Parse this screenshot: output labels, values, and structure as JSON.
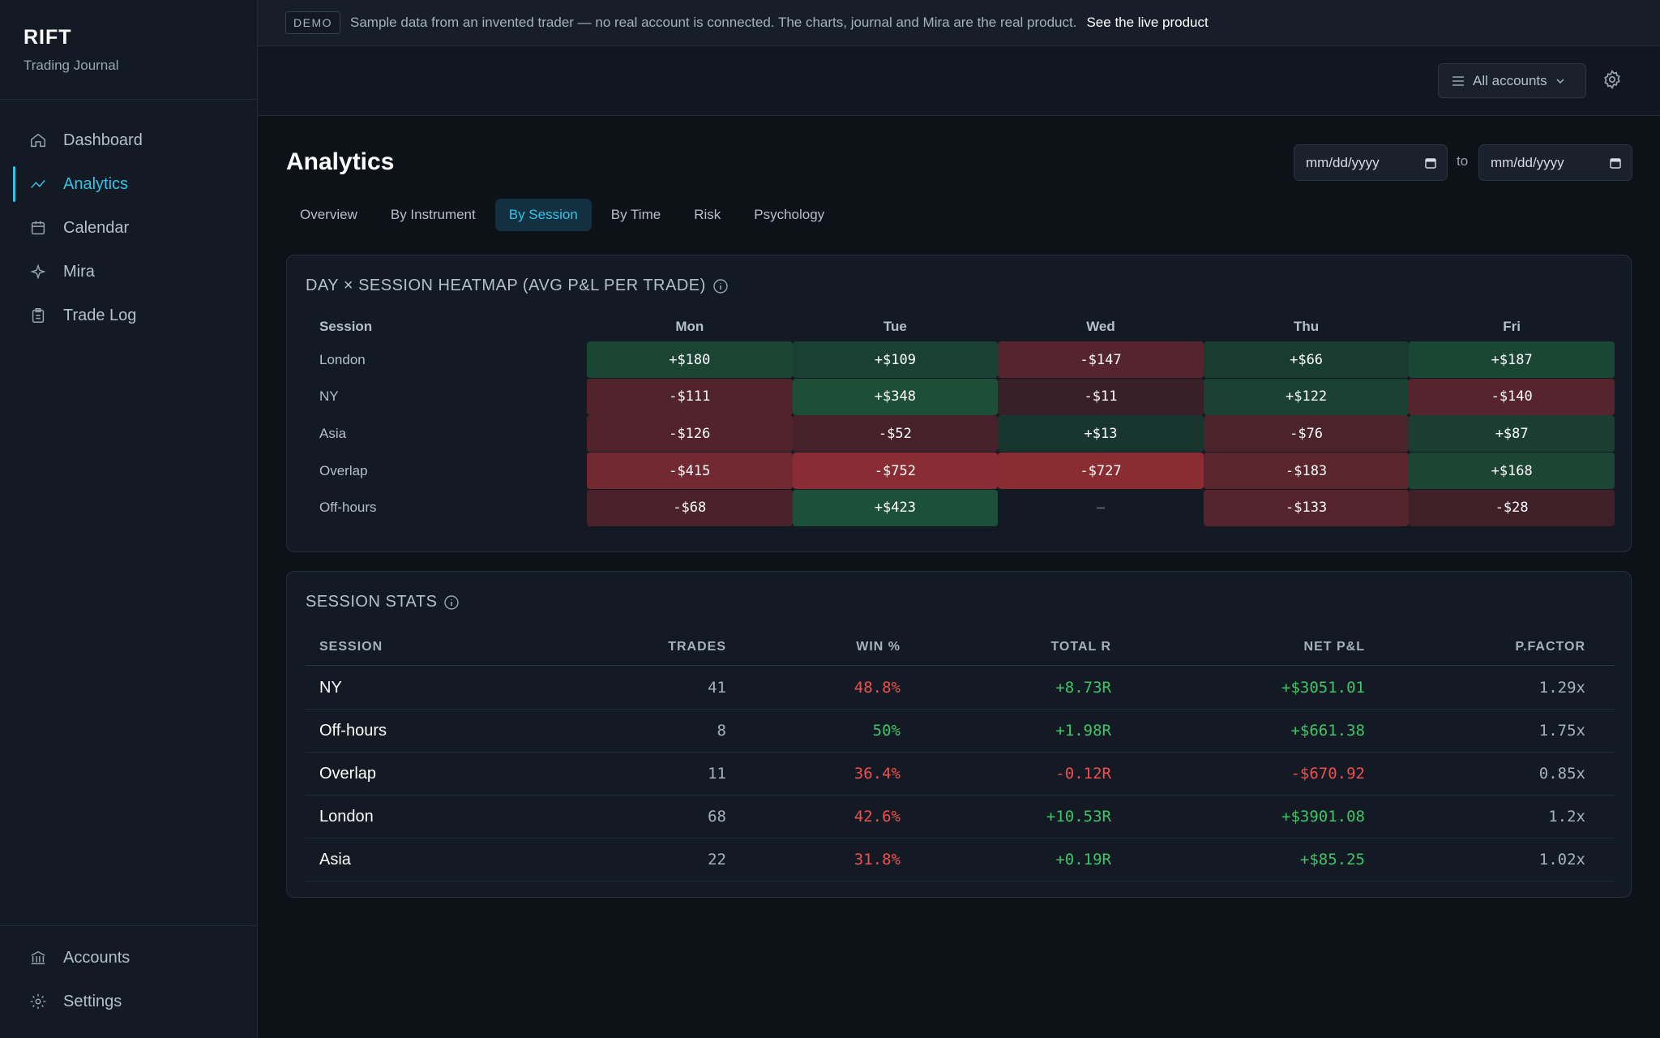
{
  "brand": {
    "name": "RIFT",
    "subtitle": "Trading Journal"
  },
  "nav": {
    "items": [
      {
        "label": "Dashboard",
        "icon": "home-icon"
      },
      {
        "label": "Analytics",
        "icon": "analytics-icon",
        "active": true
      },
      {
        "label": "Calendar",
        "icon": "calendar-icon"
      },
      {
        "label": "Mira",
        "icon": "sparkle-icon"
      },
      {
        "label": "Trade Log",
        "icon": "clipboard-icon"
      }
    ],
    "bottom": [
      {
        "label": "Accounts",
        "icon": "bank-icon"
      },
      {
        "label": "Settings",
        "icon": "gear-icon"
      }
    ]
  },
  "banner": {
    "badge": "DEMO",
    "text": "Sample data from an invented trader — no real account is connected. The charts, journal and Mira are the real product.",
    "link": "See the live product"
  },
  "topbar": {
    "account_select": "All accounts"
  },
  "page": {
    "title": "Analytics",
    "date_from_placeholder": "mm/dd/yyyy",
    "date_to_label": "to",
    "date_to_placeholder": "mm/dd/yyyy"
  },
  "tabs": [
    {
      "label": "Overview"
    },
    {
      "label": "By Instrument"
    },
    {
      "label": "By Session",
      "active": true
    },
    {
      "label": "By Time"
    },
    {
      "label": "Risk"
    },
    {
      "label": "Psychology"
    }
  ],
  "heatmap": {
    "title": "DAY × SESSION HEATMAP (AVG P&L PER TRADE)",
    "session_header": "Session",
    "days": [
      "Mon",
      "Tue",
      "Wed",
      "Thu",
      "Fri"
    ],
    "colors": {
      "positive": "#1c6b3f",
      "negative": "#8a2a30"
    },
    "rows": [
      {
        "session": "London",
        "values": [
          "+$180",
          "+$109",
          "-$147",
          "+$66",
          "+$187"
        ],
        "nums": [
          180,
          109,
          -147,
          66,
          187
        ]
      },
      {
        "session": "NY",
        "values": [
          "-$111",
          "+$348",
          "-$11",
          "+$122",
          "-$140"
        ],
        "nums": [
          -111,
          348,
          -11,
          122,
          -140
        ]
      },
      {
        "session": "Asia",
        "values": [
          "-$126",
          "-$52",
          "+$13",
          "-$76",
          "+$87"
        ],
        "nums": [
          -126,
          -52,
          13,
          -76,
          87
        ]
      },
      {
        "session": "Overlap",
        "values": [
          "-$415",
          "-$752",
          "-$727",
          "-$183",
          "+$168"
        ],
        "nums": [
          -415,
          -752,
          -727,
          -183,
          168
        ]
      },
      {
        "session": "Off-hours",
        "values": [
          "-$68",
          "+$423",
          "—",
          "-$133",
          "-$28"
        ],
        "nums": [
          -68,
          423,
          null,
          -133,
          -28
        ]
      }
    ]
  },
  "session_stats": {
    "title": "SESSION STATS",
    "headers": [
      "SESSION",
      "TRADES",
      "WIN %",
      "TOTAL R",
      "NET P&L",
      "P.FACTOR"
    ],
    "colors": {
      "positive": "#3ec467",
      "negative": "#ef4f4f"
    },
    "rows": [
      {
        "session": "NY",
        "trades": "41",
        "win": "48.8%",
        "win_pos": false,
        "total_r": "+8.73R",
        "r_pos": true,
        "net": "+$3051.01",
        "net_pos": true,
        "pf": "1.29x"
      },
      {
        "session": "Off-hours",
        "trades": "8",
        "win": "50%",
        "win_pos": true,
        "total_r": "+1.98R",
        "r_pos": true,
        "net": "+$661.38",
        "net_pos": true,
        "pf": "1.75x"
      },
      {
        "session": "Overlap",
        "trades": "11",
        "win": "36.4%",
        "win_pos": false,
        "total_r": "-0.12R",
        "r_pos": false,
        "net": "-$670.92",
        "net_pos": false,
        "pf": "0.85x"
      },
      {
        "session": "London",
        "trades": "68",
        "win": "42.6%",
        "win_pos": false,
        "total_r": "+10.53R",
        "r_pos": true,
        "net": "+$3901.08",
        "net_pos": true,
        "pf": "1.2x"
      },
      {
        "session": "Asia",
        "trades": "22",
        "win": "31.8%",
        "win_pos": false,
        "total_r": "+0.19R",
        "r_pos": true,
        "net": "+$85.25",
        "net_pos": true,
        "pf": "1.02x"
      }
    ]
  }
}
